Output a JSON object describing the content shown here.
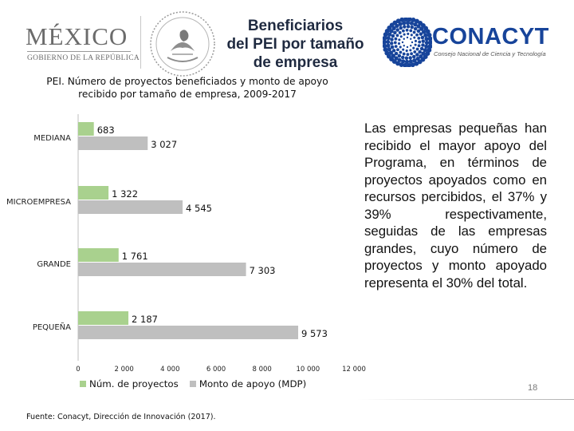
{
  "header": {
    "logo_mexico": "MÉXICO",
    "logo_mexico_sub": "GOBIERNO DE LA REPÚBLICA",
    "title_lines": [
      "Beneficiarios",
      "del PEI por tamaño",
      "de empresa"
    ],
    "logo_conacyt": "CONACYT",
    "logo_conacyt_sub": "Consejo Nacional de Ciencia y Tecnología"
  },
  "side_text": {
    "part1": "Las empresas pequeñas han recibido el mayor apoyo del Programa, en términos de proyectos apoyados como en recursos percibidos, el 37% y 39% respectivamente,",
    "part2": " seguidas de las empresas grandes, cuyo número de proyectos y monto apoyado representa el 30% del total."
  },
  "footer": {
    "source": "Fuente: Conacyt, Dirección de Innovación (2017).",
    "page_number": "18"
  },
  "colors": {
    "projects": "#a9d18e",
    "amount": "#bfbfbf",
    "conacyt_blue": "#17449a"
  },
  "chart_data": {
    "type": "bar",
    "orientation": "horizontal",
    "title": "PEI. Número de proyectos beneficiados y monto de apoyo recibido por tamaño de empresa, 2009-2017",
    "categories": [
      "MEDIANA",
      "MICROEMPRESA",
      "GRANDE",
      "PEQUEÑA"
    ],
    "series": [
      {
        "name": "Núm. de proyectos",
        "values": [
          683,
          1322,
          1761,
          2187
        ],
        "labels": [
          "683",
          "1 322",
          "1 761",
          "2 187"
        ]
      },
      {
        "name": "Monto de apoyo (MDP)",
        "values": [
          3027,
          4545,
          7303,
          9573
        ],
        "labels": [
          "3 027",
          "4 545",
          "7 303",
          "9 573"
        ]
      }
    ],
    "xlim": [
      0,
      12000
    ],
    "xticks": [
      0,
      2000,
      4000,
      6000,
      8000,
      10000,
      12000
    ],
    "xtick_labels": [
      "0",
      "2 000",
      "4 000",
      "6 000",
      "8 000",
      "10 000",
      "12 000"
    ],
    "legend_position": "bottom",
    "grid": false
  }
}
